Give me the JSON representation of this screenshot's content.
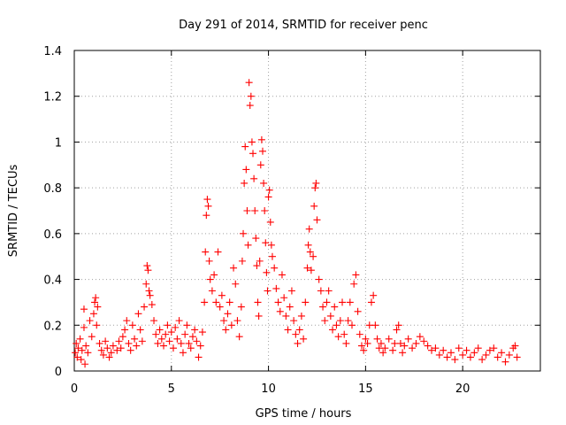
{
  "chart_data": {
    "type": "scatter",
    "title": "Day 291 of 2014, SRMTID for receiver penc",
    "xlabel": "GPS time / hours",
    "ylabel": "SRMTID / TECUs",
    "xlim": [
      0,
      24
    ],
    "ylim": [
      0,
      1.4
    ],
    "xticks": [
      "0",
      "5",
      "10",
      "15",
      "20"
    ],
    "yticks": [
      "0",
      "0.2",
      "0.4",
      "0.6",
      "0.8",
      "1",
      "1.2",
      "1.4"
    ],
    "grid": true,
    "marker": "+",
    "color": "#ff0000",
    "x_range_covered": [
      0,
      22.8
    ],
    "series": [
      {
        "name": "SRMTID",
        "points": [
          [
            0.05,
            0.08
          ],
          [
            0.1,
            0.12
          ],
          [
            0.15,
            0.06
          ],
          [
            0.2,
            0.1
          ],
          [
            0.3,
            0.14
          ],
          [
            0.35,
            0.05
          ],
          [
            0.4,
            0.09
          ],
          [
            0.5,
            0.19
          ],
          [
            0.5,
            0.27
          ],
          [
            0.55,
            0.03
          ],
          [
            0.6,
            0.11
          ],
          [
            0.7,
            0.08
          ],
          [
            0.8,
            0.22
          ],
          [
            0.9,
            0.15
          ],
          [
            1.0,
            0.25
          ],
          [
            1.05,
            0.3
          ],
          [
            1.1,
            0.32
          ],
          [
            1.15,
            0.2
          ],
          [
            1.2,
            0.28
          ],
          [
            1.3,
            0.12
          ],
          [
            1.4,
            0.09
          ],
          [
            1.5,
            0.07
          ],
          [
            1.6,
            0.13
          ],
          [
            1.7,
            0.1
          ],
          [
            1.8,
            0.06
          ],
          [
            1.9,
            0.08
          ],
          [
            2.0,
            0.11
          ],
          [
            2.2,
            0.09
          ],
          [
            2.3,
            0.13
          ],
          [
            2.4,
            0.1
          ],
          [
            2.5,
            0.15
          ],
          [
            2.6,
            0.18
          ],
          [
            2.7,
            0.22
          ],
          [
            2.8,
            0.12
          ],
          [
            2.9,
            0.09
          ],
          [
            3.0,
            0.2
          ],
          [
            3.1,
            0.14
          ],
          [
            3.2,
            0.11
          ],
          [
            3.3,
            0.25
          ],
          [
            3.4,
            0.18
          ],
          [
            3.5,
            0.13
          ],
          [
            3.6,
            0.28
          ],
          [
            3.7,
            0.38
          ],
          [
            3.75,
            0.46
          ],
          [
            3.8,
            0.44
          ],
          [
            3.85,
            0.35
          ],
          [
            3.9,
            0.33
          ],
          [
            4.0,
            0.29
          ],
          [
            4.1,
            0.22
          ],
          [
            4.2,
            0.16
          ],
          [
            4.3,
            0.12
          ],
          [
            4.4,
            0.18
          ],
          [
            4.5,
            0.14
          ],
          [
            4.6,
            0.11
          ],
          [
            4.7,
            0.16
          ],
          [
            4.8,
            0.2
          ],
          [
            4.9,
            0.13
          ],
          [
            5.0,
            0.17
          ],
          [
            5.1,
            0.1
          ],
          [
            5.2,
            0.19
          ],
          [
            5.3,
            0.14
          ],
          [
            5.4,
            0.22
          ],
          [
            5.5,
            0.12
          ],
          [
            5.6,
            0.08
          ],
          [
            5.7,
            0.16
          ],
          [
            5.8,
            0.2
          ],
          [
            5.9,
            0.12
          ],
          [
            6.0,
            0.1
          ],
          [
            6.1,
            0.15
          ],
          [
            6.2,
            0.18
          ],
          [
            6.3,
            0.13
          ],
          [
            6.4,
            0.06
          ],
          [
            6.5,
            0.11
          ],
          [
            6.6,
            0.17
          ],
          [
            6.7,
            0.3
          ],
          [
            6.75,
            0.52
          ],
          [
            6.8,
            0.68
          ],
          [
            6.85,
            0.75
          ],
          [
            6.9,
            0.72
          ],
          [
            6.95,
            0.48
          ],
          [
            7.0,
            0.4
          ],
          [
            7.1,
            0.35
          ],
          [
            7.2,
            0.42
          ],
          [
            7.3,
            0.3
          ],
          [
            7.4,
            0.52
          ],
          [
            7.5,
            0.28
          ],
          [
            7.6,
            0.33
          ],
          [
            7.7,
            0.22
          ],
          [
            7.8,
            0.18
          ],
          [
            7.9,
            0.25
          ],
          [
            8.0,
            0.3
          ],
          [
            8.1,
            0.2
          ],
          [
            8.2,
            0.45
          ],
          [
            8.3,
            0.38
          ],
          [
            8.4,
            0.22
          ],
          [
            8.5,
            0.15
          ],
          [
            8.6,
            0.28
          ],
          [
            8.65,
            0.48
          ],
          [
            8.7,
            0.6
          ],
          [
            8.75,
            0.82
          ],
          [
            8.8,
            0.98
          ],
          [
            8.85,
            0.88
          ],
          [
            8.9,
            0.7
          ],
          [
            8.95,
            0.55
          ],
          [
            9.0,
            1.26
          ],
          [
            9.05,
            1.16
          ],
          [
            9.1,
            1.2
          ],
          [
            9.15,
            1.0
          ],
          [
            9.2,
            0.95
          ],
          [
            9.25,
            0.84
          ],
          [
            9.3,
            0.7
          ],
          [
            9.35,
            0.58
          ],
          [
            9.4,
            0.46
          ],
          [
            9.45,
            0.3
          ],
          [
            9.5,
            0.24
          ],
          [
            9.55,
            0.48
          ],
          [
            9.6,
            0.9
          ],
          [
            9.65,
            1.01
          ],
          [
            9.7,
            0.96
          ],
          [
            9.75,
            0.82
          ],
          [
            9.8,
            0.7
          ],
          [
            9.85,
            0.56
          ],
          [
            9.9,
            0.43
          ],
          [
            9.95,
            0.35
          ],
          [
            10.0,
            0.76
          ],
          [
            10.05,
            0.79
          ],
          [
            10.1,
            0.65
          ],
          [
            10.15,
            0.55
          ],
          [
            10.2,
            0.5
          ],
          [
            10.3,
            0.45
          ],
          [
            10.4,
            0.36
          ],
          [
            10.5,
            0.3
          ],
          [
            10.6,
            0.26
          ],
          [
            10.7,
            0.42
          ],
          [
            10.8,
            0.32
          ],
          [
            10.9,
            0.24
          ],
          [
            11.0,
            0.18
          ],
          [
            11.1,
            0.28
          ],
          [
            11.2,
            0.35
          ],
          [
            11.3,
            0.22
          ],
          [
            11.4,
            0.16
          ],
          [
            11.5,
            0.12
          ],
          [
            11.6,
            0.18
          ],
          [
            11.7,
            0.24
          ],
          [
            11.8,
            0.14
          ],
          [
            11.9,
            0.3
          ],
          [
            12.0,
            0.45
          ],
          [
            12.05,
            0.55
          ],
          [
            12.1,
            0.62
          ],
          [
            12.15,
            0.52
          ],
          [
            12.2,
            0.44
          ],
          [
            12.3,
            0.5
          ],
          [
            12.35,
            0.72
          ],
          [
            12.4,
            0.8
          ],
          [
            12.45,
            0.82
          ],
          [
            12.5,
            0.66
          ],
          [
            12.6,
            0.4
          ],
          [
            12.7,
            0.35
          ],
          [
            12.8,
            0.28
          ],
          [
            12.9,
            0.22
          ],
          [
            13.0,
            0.3
          ],
          [
            13.1,
            0.35
          ],
          [
            13.2,
            0.24
          ],
          [
            13.3,
            0.18
          ],
          [
            13.4,
            0.28
          ],
          [
            13.5,
            0.2
          ],
          [
            13.6,
            0.15
          ],
          [
            13.7,
            0.22
          ],
          [
            13.8,
            0.3
          ],
          [
            13.9,
            0.16
          ],
          [
            14.0,
            0.12
          ],
          [
            14.1,
            0.22
          ],
          [
            14.2,
            0.3
          ],
          [
            14.3,
            0.2
          ],
          [
            14.4,
            0.38
          ],
          [
            14.5,
            0.42
          ],
          [
            14.6,
            0.26
          ],
          [
            14.7,
            0.16
          ],
          [
            14.8,
            0.11
          ],
          [
            14.9,
            0.09
          ],
          [
            15.0,
            0.14
          ],
          [
            15.1,
            0.12
          ],
          [
            15.2,
            0.2
          ],
          [
            15.3,
            0.3
          ],
          [
            15.4,
            0.33
          ],
          [
            15.5,
            0.2
          ],
          [
            15.6,
            0.14
          ],
          [
            15.7,
            0.1
          ],
          [
            15.8,
            0.12
          ],
          [
            15.9,
            0.08
          ],
          [
            16.0,
            0.1
          ],
          [
            16.2,
            0.14
          ],
          [
            16.4,
            0.09
          ],
          [
            16.5,
            0.12
          ],
          [
            16.6,
            0.18
          ],
          [
            16.7,
            0.2
          ],
          [
            16.8,
            0.12
          ],
          [
            16.9,
            0.08
          ],
          [
            17.0,
            0.11
          ],
          [
            17.2,
            0.14
          ],
          [
            17.4,
            0.1
          ],
          [
            17.6,
            0.12
          ],
          [
            17.8,
            0.15
          ],
          [
            18.0,
            0.13
          ],
          [
            18.2,
            0.11
          ],
          [
            18.4,
            0.09
          ],
          [
            18.6,
            0.1
          ],
          [
            18.8,
            0.07
          ],
          [
            19.0,
            0.09
          ],
          [
            19.2,
            0.06
          ],
          [
            19.4,
            0.08
          ],
          [
            19.6,
            0.05
          ],
          [
            19.8,
            0.1
          ],
          [
            20.0,
            0.07
          ],
          [
            20.2,
            0.09
          ],
          [
            20.4,
            0.06
          ],
          [
            20.6,
            0.08
          ],
          [
            20.8,
            0.1
          ],
          [
            21.0,
            0.05
          ],
          [
            21.2,
            0.07
          ],
          [
            21.4,
            0.09
          ],
          [
            21.6,
            0.1
          ],
          [
            21.8,
            0.06
          ],
          [
            22.0,
            0.08
          ],
          [
            22.2,
            0.04
          ],
          [
            22.4,
            0.07
          ],
          [
            22.6,
            0.1
          ],
          [
            22.7,
            0.11
          ],
          [
            22.8,
            0.06
          ]
        ]
      }
    ]
  }
}
